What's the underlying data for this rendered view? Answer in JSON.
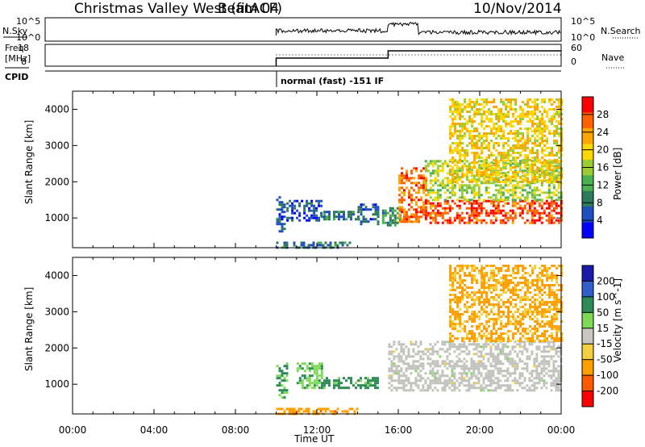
{
  "header": {
    "station": "Christmas Valley West (fitACF)",
    "beam": "Beam 04",
    "date": "10/Nov/2014"
  },
  "top_panels": {
    "nsky": {
      "label": "N.Sky",
      "ticks": [
        "10^5",
        "10^0"
      ]
    },
    "nsearch": {
      "label": "N.Search",
      "ticks": [
        "10^5",
        "10^0"
      ]
    },
    "freq": {
      "label_line1": "Freq.",
      "label_line2": "[MHz]",
      "ticks": [
        "18",
        "8"
      ]
    },
    "nave": {
      "label": "Nave",
      "ticks": [
        "60",
        "0"
      ]
    },
    "cpid": {
      "label": "CPID",
      "mode_text": "normal (fast) -151 IF"
    }
  },
  "colors": {
    "power_scale": [
      "#0000ff",
      "#1e4ec0",
      "#2d7a5a",
      "#4caf50",
      "#9acd32",
      "#ffd700",
      "#ffa500",
      "#ff6000",
      "#ff0000"
    ],
    "velocity_scale": [
      "#1a1aaa",
      "#2f5fc8",
      "#2e8b57",
      "#7ed957",
      "#c8c8c0",
      "#f4d03f",
      "#ff9f00",
      "#ff5a00",
      "#ff0000"
    ],
    "ground_scatter": "#c0c0bc"
  },
  "chart_data": [
    {
      "type": "heatmap",
      "name": "power",
      "xlabel": "",
      "ylabel": "Slant Range [km]",
      "x_range_hours": [
        0,
        24
      ],
      "ylim": [
        180,
        4500
      ],
      "yticks": [
        1000,
        2000,
        3000,
        4000
      ],
      "colorbar": {
        "label": "Power [dB]",
        "range": [
          0,
          32
        ],
        "ticks": [
          4,
          8,
          12,
          16,
          20,
          24,
          28
        ]
      },
      "regions": [
        {
          "x": [
            10.0,
            10.4
          ],
          "y": [
            600,
            1600
          ],
          "value": 6
        },
        {
          "x": [
            10.0,
            13.6
          ],
          "y": [
            200,
            350
          ],
          "value": 8
        },
        {
          "x": [
            10.5,
            12.2
          ],
          "y": [
            900,
            1500
          ],
          "value": 6
        },
        {
          "x": [
            12.2,
            14.0
          ],
          "y": [
            950,
            1200
          ],
          "value": 8
        },
        {
          "x": [
            14.0,
            15.0
          ],
          "y": [
            850,
            1400
          ],
          "value": 6
        },
        {
          "x": [
            15.2,
            16.1
          ],
          "y": [
            800,
            1300
          ],
          "value": 10
        },
        {
          "x": [
            16.0,
            17.4
          ],
          "y": [
            900,
            2400
          ],
          "value": 26
        },
        {
          "x": [
            17.3,
            24.0
          ],
          "y": [
            850,
            1500
          ],
          "value": 28
        },
        {
          "x": [
            17.3,
            24.0
          ],
          "y": [
            1500,
            2600
          ],
          "value": 16
        },
        {
          "x": [
            18.5,
            24.0
          ],
          "y": [
            2000,
            4300
          ],
          "value": 20
        }
      ]
    },
    {
      "type": "heatmap",
      "name": "velocity",
      "xlabel": "Time UT",
      "ylabel": "Slant Range [km]",
      "x_range_hours": [
        0,
        24
      ],
      "xticks": [
        "00:00",
        "04:00",
        "08:00",
        "12:00",
        "16:00",
        "20:00",
        "00:00"
      ],
      "ylim": [
        180,
        4500
      ],
      "yticks": [
        1000,
        2000,
        3000,
        4000
      ],
      "colorbar": {
        "label": "Velocity [m s^-1]",
        "ticks": [
          200,
          100,
          50,
          15,
          -15,
          -50,
          -100,
          -200
        ]
      },
      "regions": [
        {
          "x": [
            10.0,
            10.5
          ],
          "y": [
            600,
            1600
          ],
          "value": 60
        },
        {
          "x": [
            10.0,
            14.0
          ],
          "y": [
            200,
            350
          ],
          "value": -80
        },
        {
          "x": [
            11.0,
            12.2
          ],
          "y": [
            900,
            1600
          ],
          "value": 40
        },
        {
          "x": [
            12.2,
            15.0
          ],
          "y": [
            900,
            1200
          ],
          "value": 70
        },
        {
          "x": [
            15.5,
            24.0
          ],
          "y": [
            850,
            2200
          ],
          "value": 0,
          "ground_scatter": true
        },
        {
          "x": [
            18.5,
            24.0
          ],
          "y": [
            2200,
            4300
          ],
          "value": -60
        }
      ]
    }
  ]
}
